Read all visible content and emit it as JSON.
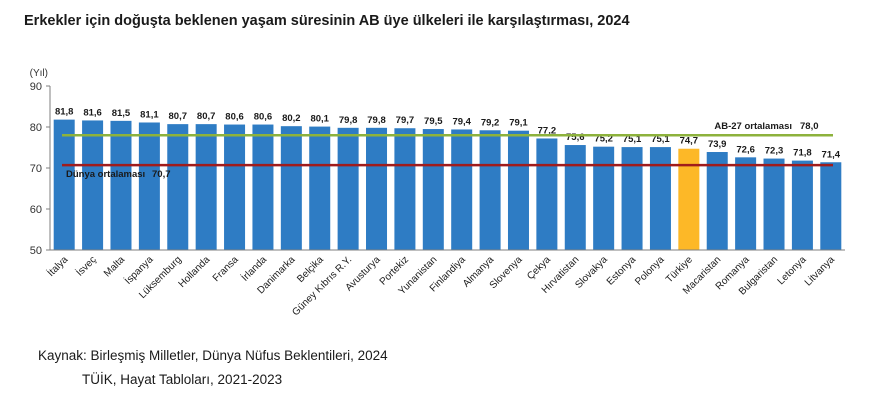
{
  "title": "Erkekler için doğuşta beklenen yaşam süresinin AB üye ülkeleri ile karşılaştırması, 2024",
  "source": {
    "line1": "Kaynak: Birleşmiş Milletler, Dünya Nüfus Beklentileri, 2024",
    "line2": "TÜİK, Hayat Tabloları, 2021-2023"
  },
  "colors": {
    "bar": "#2E7CC4",
    "highlight": "#FDB827",
    "eu_line": "#8DB23C",
    "world_line": "#A01C1C"
  },
  "chart_data": {
    "type": "bar",
    "title": "Erkekler için doğuşta beklenen yaşam süresinin AB üye ülkeleri ile karşılaştırması, 2024",
    "ylabel": "(Yıl)",
    "xlabel": "",
    "ylim": [
      50,
      90
    ],
    "yticks": [
      50,
      60,
      70,
      80,
      90
    ],
    "grid": false,
    "highlight_category": "Türkiye",
    "categories": [
      "İtalya",
      "İsveç",
      "Malta",
      "İspanya",
      "Lüksemburg",
      "Hollanda",
      "Fransa",
      "İrlanda",
      "Danimarka",
      "Belçika",
      "Güney Kıbrıs R.Y.",
      "Avusturya",
      "Portekiz",
      "Yunanistan",
      "Finlandiya",
      "Almanya",
      "Slovenya",
      "Çekya",
      "Hırvatistan",
      "Slovakya",
      "Estonya",
      "Polonya",
      "Türkiye",
      "Macaristan",
      "Romanya",
      "Bulgaristan",
      "Letonya",
      "Litvanya"
    ],
    "values": [
      81.8,
      81.6,
      81.5,
      81.1,
      80.7,
      80.7,
      80.6,
      80.6,
      80.2,
      80.1,
      79.8,
      79.8,
      79.7,
      79.5,
      79.4,
      79.2,
      79.1,
      77.2,
      75.6,
      75.2,
      75.1,
      75.1,
      74.7,
      73.9,
      72.6,
      72.3,
      71.8,
      71.4
    ],
    "value_labels": [
      "81,8",
      "81,6",
      "81,5",
      "81,1",
      "80,7",
      "80,7",
      "80,6",
      "80,6",
      "80,2",
      "80,1",
      "79,8",
      "79,8",
      "79,7",
      "79,5",
      "79,4",
      "79,2",
      "79,1",
      "77,2",
      "75,6",
      "75,2",
      "75,1",
      "75,1",
      "74,7",
      "73,9",
      "72,6",
      "72,3",
      "71,8",
      "71,4"
    ],
    "reference_lines": [
      {
        "name": "AB-27 ortalaması",
        "value": 78.0,
        "label": "78,0"
      },
      {
        "name": "Dünya ortalaması",
        "value": 70.7,
        "label": "70,7"
      }
    ]
  }
}
